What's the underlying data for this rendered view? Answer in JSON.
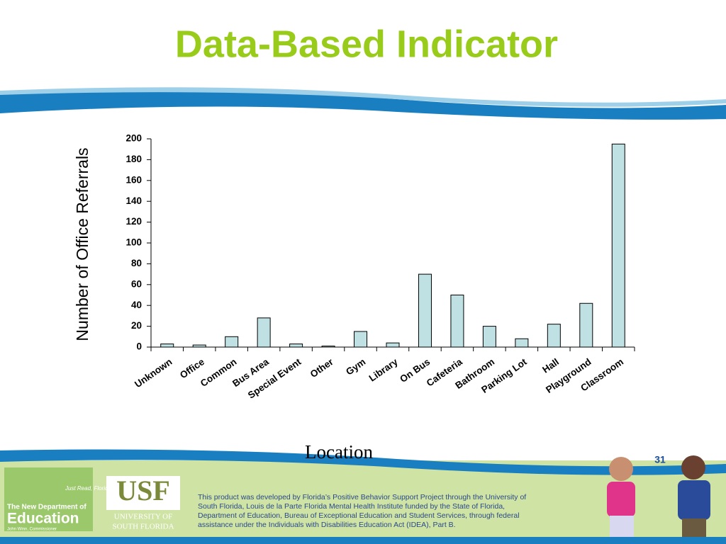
{
  "chart_data": {
    "type": "bar",
    "title": "Data-Based Indicator",
    "xlabel": "Location",
    "ylabel": "Number of Office Referrals",
    "categories": [
      "Unknown",
      "Office",
      "Common",
      "Bus Area",
      "Special Event",
      "Other",
      "Gym",
      "Library",
      "On Bus",
      "Cafeteria",
      "Bathroom",
      "Parking Lot",
      "Hall",
      "Playground",
      "Classroom"
    ],
    "values": [
      3,
      2,
      10,
      28,
      3,
      1,
      15,
      4,
      70,
      50,
      20,
      8,
      22,
      42,
      195
    ],
    "color": "#bfe1e4",
    "ylim": [
      0,
      200
    ],
    "yticks": [
      0,
      20,
      40,
      60,
      80,
      100,
      120,
      140,
      160,
      180,
      200
    ],
    "grid": false
  },
  "footer": {
    "page_number": "31",
    "doe_logo": [
      "Just Read, Florida!",
      "The New Department of",
      "Education",
      "John Winn, Commissioner"
    ],
    "usf_logo": [
      "USF",
      "UNIVERSITY OF",
      "SOUTH FLORIDA"
    ],
    "credit_lines": [
      "This product was developed by Florida’s Positive Behavior Support Project through the University of",
      "South Florida, Louis de la Parte Florida Mental Health Institute funded by the State of Florida,",
      "Department of Education, Bureau of Exceptional Education and Student Services, through federal",
      "assistance under the Individuals with Disabilities Education Act (IDEA), Part B."
    ]
  }
}
